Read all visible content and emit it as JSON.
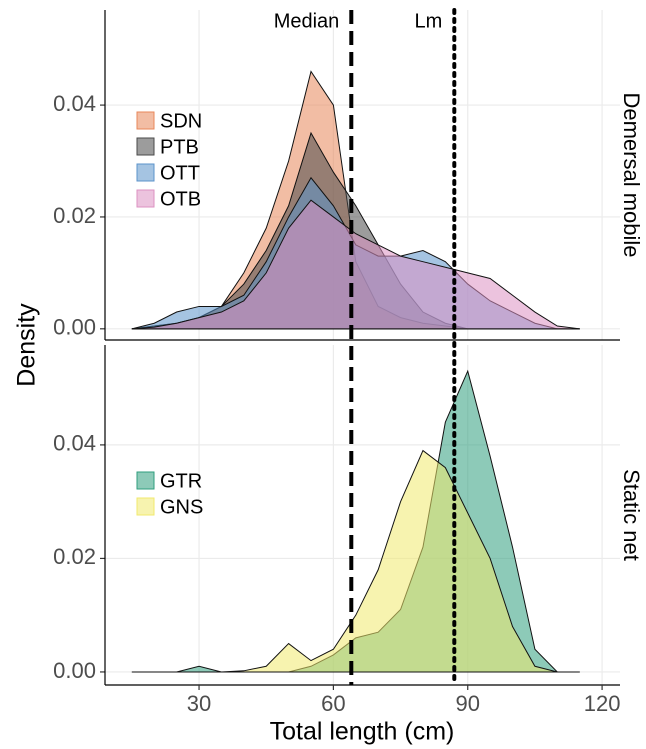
{
  "shared": {
    "xlabel": "Total length (cm)",
    "ylabel": "Density",
    "vlines": [
      {
        "label": "Median",
        "x": 64,
        "style": "dashed"
      },
      {
        "label": "Lm",
        "x": 87,
        "style": "dotted"
      }
    ]
  },
  "chart_data": [
    {
      "type": "area",
      "facet": "Demersal mobile",
      "grid": true,
      "legend": "left",
      "x": [
        15,
        20,
        25,
        30,
        35,
        40,
        45,
        50,
        55,
        60,
        65,
        70,
        75,
        80,
        85,
        90,
        95,
        100,
        105,
        110,
        115
      ],
      "xlim": [
        9,
        124
      ],
      "xticks": [
        30,
        60,
        90,
        120
      ],
      "ylim": [
        -0.002,
        0.057
      ],
      "yticks": [
        {
          "value": 0,
          "label": "0.00"
        },
        0.02,
        0.04
      ],
      "series": [
        {
          "name": "SDN",
          "color": "#e8875a",
          "values": [
            0,
            0.0005,
            0.001,
            0.002,
            0.004,
            0.01,
            0.018,
            0.03,
            0.046,
            0.04,
            0.012,
            0.004,
            0.002,
            0.001,
            0.0005,
            0,
            0,
            0,
            0,
            0,
            0
          ]
        },
        {
          "name": "PTB",
          "color": "#4a4a4a",
          "values": [
            0,
            0.0005,
            0.001,
            0.002,
            0.004,
            0.008,
            0.014,
            0.022,
            0.035,
            0.028,
            0.022,
            0.015,
            0.008,
            0.003,
            0.001,
            0,
            0,
            0,
            0,
            0,
            0
          ]
        },
        {
          "name": "OTT",
          "color": "#5b93cb",
          "values": [
            0,
            0.001,
            0.003,
            0.004,
            0.004,
            0.006,
            0.012,
            0.02,
            0.027,
            0.022,
            0.015,
            0.013,
            0.013,
            0.014,
            0.012,
            0.008,
            0.005,
            0.003,
            0.001,
            0,
            0
          ]
        },
        {
          "name": "OTB",
          "color": "#dc92c2",
          "values": [
            0,
            0.0003,
            0.001,
            0.002,
            0.003,
            0.005,
            0.01,
            0.018,
            0.023,
            0.02,
            0.017,
            0.015,
            0.013,
            0.012,
            0.011,
            0.01,
            0.009,
            0.006,
            0.003,
            0.0005,
            0
          ]
        }
      ]
    },
    {
      "type": "area",
      "facet": "Static net",
      "grid": true,
      "legend": "left",
      "x": [
        15,
        20,
        25,
        30,
        35,
        40,
        45,
        50,
        55,
        60,
        65,
        70,
        75,
        80,
        85,
        90,
        95,
        100,
        105,
        110,
        115
      ],
      "xlim": [
        9,
        124
      ],
      "xticks": [
        30,
        60,
        90,
        120
      ],
      "ylim": [
        -0.0023,
        0.0576
      ],
      "yticks": [
        {
          "value": 0,
          "label": "0.00"
        },
        0.02,
        0.04
      ],
      "series": [
        {
          "name": "GTR",
          "color": "#2f9e7e",
          "values": [
            0,
            0,
            0,
            0.001,
            0,
            0,
            0,
            0,
            0.001,
            0.003,
            0.006,
            0.007,
            0.011,
            0.022,
            0.044,
            0.053,
            0.038,
            0.022,
            0.004,
            0,
            0
          ]
        },
        {
          "name": "GNS",
          "color": "#f0ea6e",
          "values": [
            0,
            0,
            0,
            0,
            0,
            0.0002,
            0.001,
            0.005,
            0.002,
            0.004,
            0.01,
            0.018,
            0.03,
            0.039,
            0.036,
            0.028,
            0.02,
            0.008,
            0.001,
            0,
            0
          ]
        }
      ]
    }
  ]
}
